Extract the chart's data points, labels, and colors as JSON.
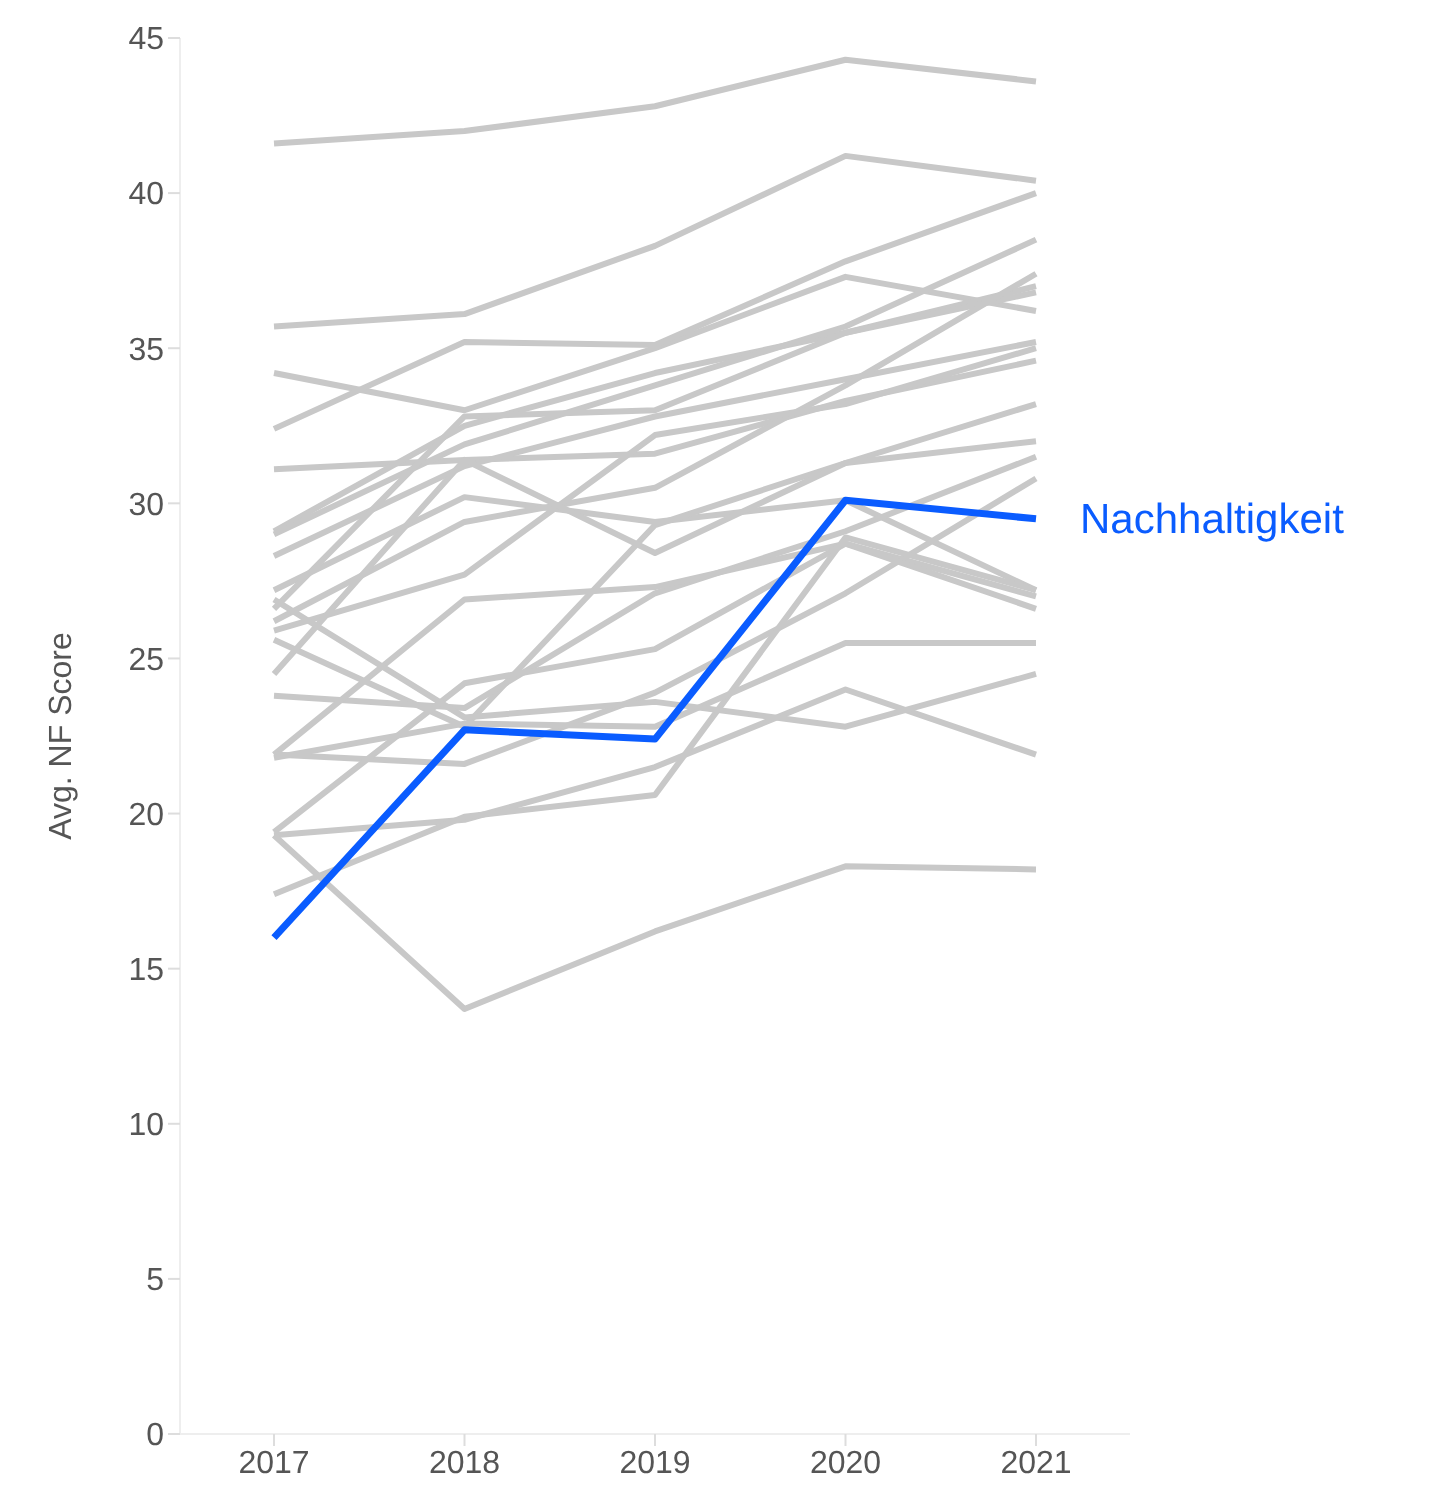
{
  "chart_data": {
    "type": "line",
    "ylabel": "Avg. NF Score",
    "categories": [
      "2017",
      "2018",
      "2019",
      "2020",
      "2021"
    ],
    "ylim": [
      0,
      45
    ],
    "yticks": [
      0,
      5,
      10,
      15,
      20,
      25,
      30,
      35,
      40,
      45
    ],
    "grid": false,
    "legend": false,
    "marker": "none",
    "line_style": "solid",
    "series": [
      {
        "color": "#c8c8c8",
        "values": [
          41.6,
          42.0,
          42.8,
          44.3,
          43.6
        ]
      },
      {
        "color": "#c8c8c8",
        "values": [
          35.7,
          36.1,
          38.3,
          41.2,
          40.4
        ]
      },
      {
        "color": "#c8c8c8",
        "values": [
          34.2,
          33.0,
          35.0,
          37.3,
          36.2
        ]
      },
      {
        "color": "#c8c8c8",
        "values": [
          32.4,
          35.2,
          35.1,
          37.8,
          40.0
        ]
      },
      {
        "color": "#c8c8c8",
        "values": [
          31.1,
          31.4,
          31.6,
          33.3,
          34.6
        ]
      },
      {
        "color": "#c8c8c8",
        "values": [
          29.1,
          32.5,
          34.2,
          35.5,
          37.0
        ]
      },
      {
        "color": "#c8c8c8",
        "values": [
          29.0,
          31.9,
          33.8,
          35.7,
          38.5
        ]
      },
      {
        "color": "#c8c8c8",
        "values": [
          28.3,
          31.2,
          32.8,
          34.0,
          35.2
        ]
      },
      {
        "color": "#c8c8c8",
        "values": [
          27.2,
          30.2,
          29.4,
          30.1,
          27.2
        ]
      },
      {
        "color": "#c8c8c8",
        "values": [
          26.6,
          32.8,
          33.0,
          35.5,
          36.8
        ]
      },
      {
        "color": "#c8c8c8",
        "values": [
          26.2,
          29.4,
          30.5,
          33.8,
          37.4
        ]
      },
      {
        "color": "#c8c8c8",
        "values": [
          25.9,
          27.7,
          32.2,
          33.2,
          35.0
        ]
      },
      {
        "color": "#c8c8c8",
        "values": [
          25.6,
          22.8,
          29.3,
          31.3,
          33.2
        ]
      },
      {
        "color": "#c8c8c8",
        "values": [
          24.5,
          31.4,
          28.4,
          31.3,
          32.0
        ]
      },
      {
        "color": "#c8c8c8",
        "values": [
          23.8,
          23.4,
          27.1,
          29.1,
          31.5
        ]
      },
      {
        "color": "#c8c8c8",
        "values": [
          21.9,
          26.9,
          27.3,
          28.7,
          27.0
        ]
      },
      {
        "color": "#c8c8c8",
        "values": [
          21.9,
          21.6,
          23.9,
          27.1,
          30.8
        ]
      },
      {
        "color": "#c8c8c8",
        "values": [
          19.4,
          24.2,
          25.3,
          28.7,
          26.6
        ]
      },
      {
        "color": "#c8c8c8",
        "values": [
          19.3,
          19.8,
          21.5,
          24.0,
          21.9
        ]
      },
      {
        "color": "#c8c8c8",
        "values": [
          19.3,
          13.7,
          16.2,
          18.3,
          18.2
        ]
      },
      {
        "color": "#c8c8c8",
        "values": [
          17.4,
          19.9,
          20.6,
          28.9,
          27.2
        ]
      },
      {
        "color": "#c8c8c8",
        "values": [
          21.8,
          22.9,
          22.8,
          25.5,
          25.5
        ]
      },
      {
        "color": "#c8c8c8",
        "values": [
          26.9,
          23.1,
          23.6,
          22.8,
          24.5
        ]
      },
      {
        "name": "Nachhaltigkeit",
        "color": "#0a5cff",
        "values": [
          16.0,
          22.7,
          22.4,
          30.1,
          29.5
        ]
      }
    ]
  }
}
